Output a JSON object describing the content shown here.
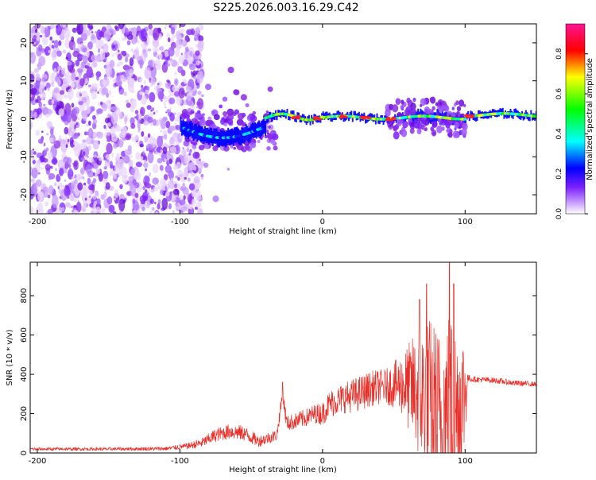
{
  "title": "S225.2026.003.16.29.C42",
  "colors": {
    "snr_line": "#e8302a",
    "frame": "#000000",
    "background": "#ffffff"
  },
  "chart_data": [
    {
      "type": "heatmap",
      "title": "S225.2026.003.16.29.C42",
      "xlabel": "Height of straight line (km)",
      "ylabel": "Frequency (Hz)",
      "xlim": [
        -205,
        150
      ],
      "ylim": [
        -25,
        25
      ],
      "x_ticks": [
        -200,
        -100,
        0,
        100
      ],
      "x_tick_labels": [
        "-200",
        "-100",
        "0",
        "100"
      ],
      "y_ticks": [
        -20,
        -10,
        0,
        10,
        20
      ],
      "y_tick_labels": [
        "-20",
        "-10",
        "0",
        "10",
        "20"
      ],
      "colorbar": {
        "label": "Normalized spectral amplitude",
        "range": [
          0,
          0.95
        ],
        "ticks": [
          0,
          0.2,
          0.4,
          0.6,
          0.8
        ],
        "tick_labels": [
          "0.0",
          "0.2",
          "0.4",
          "0.6",
          "0.8"
        ],
        "colormap": [
          "#ffffff",
          "#9b30ff",
          "#0000ff",
          "#00ffff",
          "#00ff00",
          "#ffff00",
          "#ff0000",
          "#ff1493"
        ]
      },
      "description_values": {
        "noise_region_x": [
          -205,
          -88
        ],
        "signal_band_center_hz": 0.5,
        "signal_start_x": -100
      }
    },
    {
      "type": "line",
      "xlabel": "Height of straight line (km)",
      "ylabel": "SNR (10 * v/v)",
      "xlim": [
        -205,
        150
      ],
      "ylim": [
        0,
        970
      ],
      "x_ticks": [
        -200,
        -100,
        0,
        100
      ],
      "x_tick_labels": [
        "-200",
        "-100",
        "0",
        "100"
      ],
      "y_ticks": [
        0,
        200,
        400,
        600,
        800
      ],
      "y_tick_labels": [
        "0",
        "200",
        "400",
        "600",
        "800"
      ],
      "series": [
        {
          "name": "SNR",
          "color": "#e8302a",
          "envelope": {
            "x": [
              -205,
              -150,
              -110,
              -95,
              -85,
              -75,
              -65,
              -55,
              -45,
              -32,
              -28,
              -25,
              -15,
              -5,
              0,
              5,
              15,
              25,
              35,
              45,
              55,
              62,
              68,
              75,
              82,
              88,
              92,
              96,
              100,
              102,
              105,
              120,
              135,
              150
            ],
            "base": [
              20,
              20,
              22,
              35,
              50,
              90,
              110,
              100,
              60,
              90,
              300,
              150,
              170,
              200,
              200,
              250,
              280,
              300,
              330,
              340,
              350,
              330,
              300,
              250,
              150,
              200,
              150,
              250,
              300,
              380,
              375,
              370,
              355,
              350
            ],
            "spread": [
              8,
              8,
              10,
              15,
              25,
              35,
              40,
              40,
              30,
              30,
              40,
              40,
              45,
              50,
              60,
              70,
              80,
              90,
              90,
              90,
              150,
              250,
              350,
              450,
              500,
              550,
              560,
              450,
              300,
              20,
              15,
              15,
              15,
              12
            ]
          },
          "peaks": [
            {
              "x": -28,
              "y": 360
            },
            {
              "x": 68,
              "y": 780
            },
            {
              "x": 73,
              "y": 860
            },
            {
              "x": 89,
              "y": 970
            },
            {
              "x": 92,
              "y": 860
            }
          ]
        }
      ]
    }
  ]
}
